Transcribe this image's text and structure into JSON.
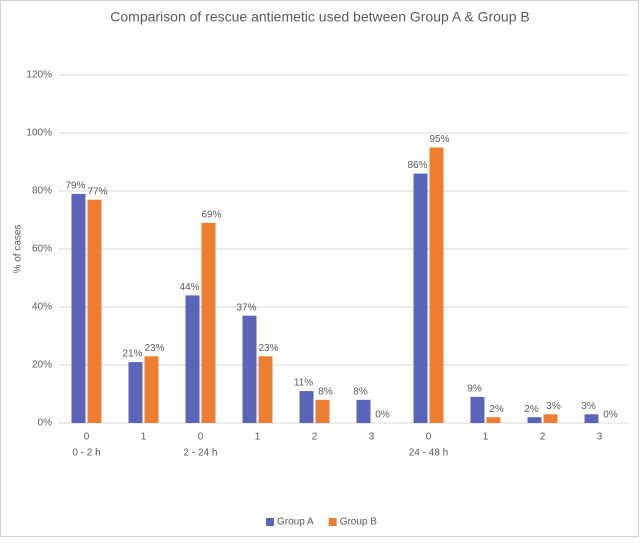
{
  "chart_data": {
    "type": "bar",
    "title": "Comparison of rescue antiemetic used between Group A & Group B",
    "y_label": "% of cases",
    "categories": [
      "0",
      "1",
      "0",
      "1",
      "2",
      "3",
      "0",
      "1",
      "2",
      "3"
    ],
    "group_labels": [
      "0 - 2 h",
      null,
      "2 - 24 h",
      null,
      null,
      null,
      "24 - 48 h",
      null,
      null,
      null
    ],
    "series": [
      {
        "name": "Group A",
        "color": "#5a64b8",
        "values": [
          79,
          21,
          44,
          37,
          11,
          8,
          86,
          9,
          2,
          3
        ],
        "value_labels": [
          "79%",
          "21%",
          "44%",
          "37%",
          "11%",
          "8%",
          "86%",
          "9%",
          "2%",
          "3%"
        ]
      },
      {
        "name": "Group B",
        "color": "#ed7d31",
        "values": [
          77,
          23,
          69,
          23,
          8,
          0,
          95,
          2,
          3,
          0
        ],
        "value_labels": [
          "77%",
          "23%",
          "69%",
          "23%",
          "8%",
          "0%",
          "95%",
          "2%",
          "3%",
          "0%"
        ]
      }
    ],
    "ylim": [
      0,
      120
    ],
    "yticks": [
      {
        "value": 0,
        "label": "0%"
      },
      {
        "value": 20,
        "label": "20%"
      },
      {
        "value": 40,
        "label": "40%"
      },
      {
        "value": 60,
        "label": "60%"
      },
      {
        "value": 80,
        "label": "80%"
      },
      {
        "value": 100,
        "label": "100%"
      },
      {
        "value": 120,
        "label": "120%"
      }
    ],
    "grid": true,
    "legend": "bottom"
  }
}
